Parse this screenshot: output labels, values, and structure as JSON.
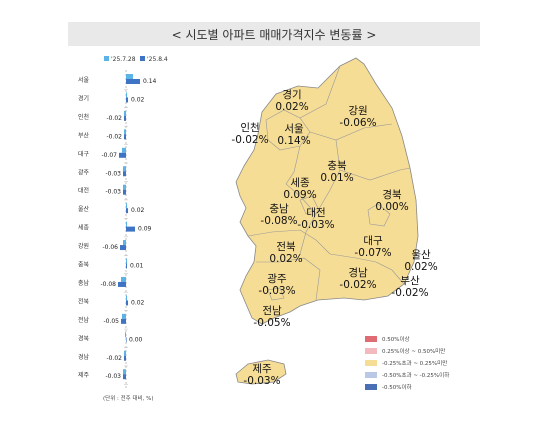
{
  "header": {
    "title": "< 시도별 아파트 매매가격지수 변동률 >"
  },
  "chart_data": {
    "type": "bar",
    "orientation": "horizontal",
    "categories": [
      "서울",
      "경기",
      "인천",
      "부산",
      "대구",
      "광주",
      "대전",
      "울산",
      "세종",
      "강원",
      "충북",
      "충남",
      "전북",
      "전남",
      "경북",
      "경남",
      "제주"
    ],
    "series": [
      {
        "name": "'25.7.28",
        "color": "#5bb3e6",
        "values": [
          0.07,
          0.01,
          -0.02,
          -0.02,
          -0.04,
          -0.03,
          -0.03,
          0.01,
          0.01,
          -0.03,
          0.01,
          -0.05,
          0.01,
          -0.04,
          -0.01,
          -0.02,
          -0.03
        ]
      },
      {
        "name": "'25.8.4",
        "color": "#3f74c4",
        "values": [
          0.14,
          0.02,
          -0.02,
          -0.02,
          -0.07,
          -0.03,
          -0.03,
          0.02,
          0.09,
          -0.06,
          0.01,
          -0.08,
          0.02,
          -0.05,
          0.0,
          -0.02,
          -0.03
        ]
      }
    ],
    "data_labels": [
      "0.14",
      "0.02",
      "-0.02",
      "-0.02",
      "-0.07",
      "-0.03",
      "-0.03",
      "0.02",
      "0.09",
      "-0.06",
      "0.01",
      "-0.08",
      "0.02",
      "-0.05",
      "0.00",
      "-0.02",
      "-0.03"
    ],
    "unit_note": "(단위 : 전주 대비, %)"
  },
  "map": {
    "regions": [
      {
        "name": "경기",
        "value": "0.02%"
      },
      {
        "name": "강원",
        "value": "-0.06%"
      },
      {
        "name": "인천",
        "value": "-0.02%"
      },
      {
        "name": "서울",
        "value": "0.14%"
      },
      {
        "name": "충북",
        "value": "0.01%"
      },
      {
        "name": "세종",
        "value": "0.09%"
      },
      {
        "name": "경북",
        "value": "0.00%"
      },
      {
        "name": "충남",
        "value": "-0.08%"
      },
      {
        "name": "대전",
        "value": "-0.03%"
      },
      {
        "name": "대구",
        "value": "-0.07%"
      },
      {
        "name": "울산",
        "value": "0.02%"
      },
      {
        "name": "전북",
        "value": "0.02%"
      },
      {
        "name": "경남",
        "value": "-0.02%"
      },
      {
        "name": "부산",
        "value": "-0.02%"
      },
      {
        "name": "광주",
        "value": "-0.03%"
      },
      {
        "name": "전남",
        "value": "-0.05%"
      },
      {
        "name": "제주",
        "value": "-0.03%"
      }
    ],
    "fill_color": "#f6dd96",
    "legend": [
      {
        "label": "0.50%이상",
        "color": "#e06b73"
      },
      {
        "label": "0.25%이상 ~ 0.50%미만",
        "color": "#f2b9bf"
      },
      {
        "label": "-0.25%초과 ~ 0.25%미만",
        "color": "#f6dd96"
      },
      {
        "label": "-0.50%초과 ~ -0.25%이하",
        "color": "#b9c8e6"
      },
      {
        "label": "-0.50%이하",
        "color": "#4a6fb5"
      }
    ]
  }
}
